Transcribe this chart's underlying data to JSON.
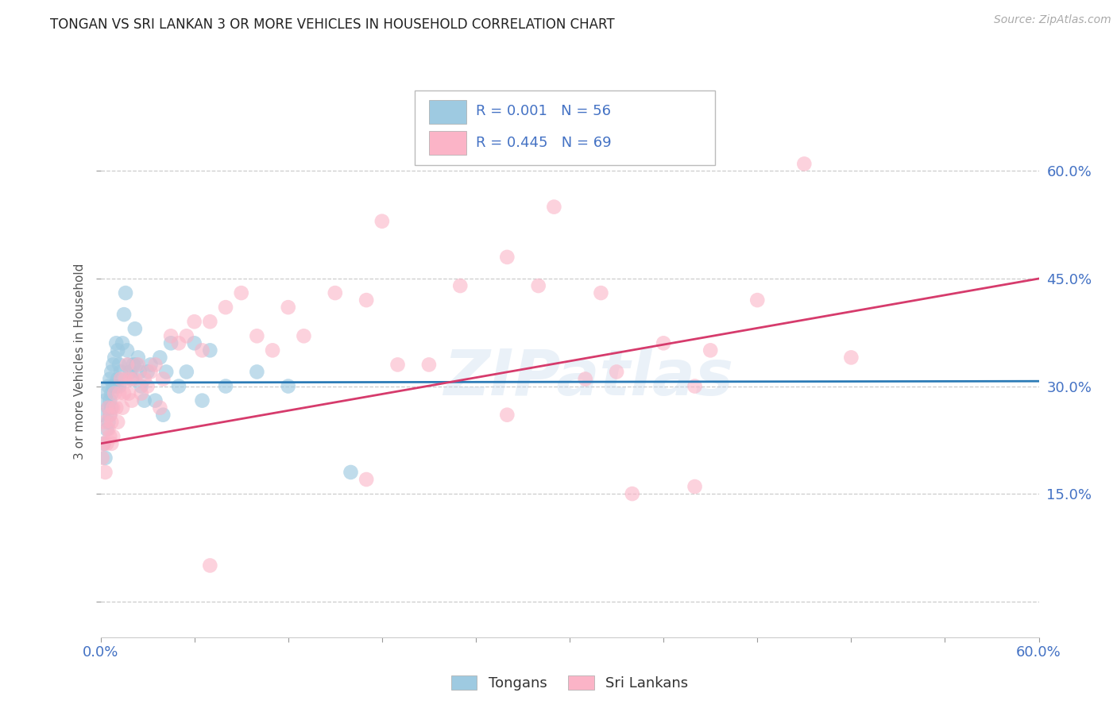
{
  "title": "TONGAN VS SRI LANKAN 3 OR MORE VEHICLES IN HOUSEHOLD CORRELATION CHART",
  "source": "Source: ZipAtlas.com",
  "ylabel": "3 or more Vehicles in Household",
  "xlim": [
    0.0,
    0.6
  ],
  "ylim": [
    -0.05,
    0.72
  ],
  "yticks": [
    0.0,
    0.15,
    0.3,
    0.45,
    0.6
  ],
  "ytick_labels": [
    "",
    "15.0%",
    "30.0%",
    "45.0%",
    "60.0%"
  ],
  "xticks": [
    0.0,
    0.06,
    0.12,
    0.18,
    0.24,
    0.3,
    0.36,
    0.42,
    0.48,
    0.54,
    0.6
  ],
  "xtick_labels": [
    "0.0%",
    "",
    "",
    "",
    "",
    "",
    "",
    "",
    "",
    "",
    "60.0%"
  ],
  "legend_blue_r": "R = 0.001",
  "legend_blue_n": "N = 56",
  "legend_pink_r": "R = 0.445",
  "legend_pink_n": "N = 69",
  "legend_label_blue": "Tongans",
  "legend_label_pink": "Sri Lankans",
  "blue_color": "#9ecae1",
  "pink_color": "#fbb4c7",
  "blue_line_color": "#2c7bb6",
  "pink_line_color": "#d63b6c",
  "title_color": "#222222",
  "axis_label_color": "#555555",
  "tick_label_color": "#4472C4",
  "watermark": "ZIPatlas",
  "background_color": "#ffffff",
  "grid_color": "#cccccc",
  "tongans_x": [
    0.001,
    0.002,
    0.003,
    0.003,
    0.004,
    0.004,
    0.005,
    0.005,
    0.005,
    0.006,
    0.006,
    0.006,
    0.007,
    0.007,
    0.007,
    0.008,
    0.008,
    0.009,
    0.009,
    0.01,
    0.01,
    0.011,
    0.011,
    0.012,
    0.012,
    0.013,
    0.014,
    0.015,
    0.016,
    0.017,
    0.018,
    0.019,
    0.02,
    0.021,
    0.022,
    0.023,
    0.024,
    0.025,
    0.026,
    0.028,
    0.03,
    0.032,
    0.035,
    0.038,
    0.04,
    0.042,
    0.045,
    0.05,
    0.055,
    0.06,
    0.065,
    0.07,
    0.08,
    0.1,
    0.12,
    0.16
  ],
  "tongans_y": [
    0.26,
    0.22,
    0.28,
    0.2,
    0.29,
    0.24,
    0.3,
    0.27,
    0.25,
    0.31,
    0.28,
    0.26,
    0.32,
    0.29,
    0.27,
    0.33,
    0.3,
    0.34,
    0.3,
    0.36,
    0.3,
    0.35,
    0.31,
    0.33,
    0.3,
    0.32,
    0.36,
    0.4,
    0.43,
    0.35,
    0.33,
    0.32,
    0.31,
    0.33,
    0.38,
    0.33,
    0.34,
    0.32,
    0.3,
    0.28,
    0.32,
    0.33,
    0.28,
    0.34,
    0.26,
    0.32,
    0.36,
    0.3,
    0.32,
    0.36,
    0.28,
    0.35,
    0.3,
    0.32,
    0.3,
    0.18
  ],
  "srilankans_x": [
    0.001,
    0.002,
    0.003,
    0.003,
    0.004,
    0.005,
    0.005,
    0.006,
    0.006,
    0.007,
    0.007,
    0.008,
    0.008,
    0.009,
    0.01,
    0.011,
    0.012,
    0.013,
    0.014,
    0.015,
    0.016,
    0.017,
    0.018,
    0.019,
    0.02,
    0.022,
    0.024,
    0.026,
    0.028,
    0.03,
    0.032,
    0.035,
    0.038,
    0.04,
    0.045,
    0.05,
    0.055,
    0.06,
    0.065,
    0.07,
    0.08,
    0.09,
    0.1,
    0.11,
    0.12,
    0.13,
    0.15,
    0.17,
    0.19,
    0.21,
    0.23,
    0.26,
    0.28,
    0.31,
    0.33,
    0.36,
    0.39,
    0.42,
    0.45,
    0.48,
    0.29,
    0.34,
    0.38,
    0.18,
    0.07,
    0.32,
    0.26,
    0.17,
    0.38
  ],
  "srilankans_y": [
    0.2,
    0.22,
    0.18,
    0.25,
    0.22,
    0.24,
    0.27,
    0.23,
    0.26,
    0.22,
    0.25,
    0.27,
    0.23,
    0.29,
    0.27,
    0.25,
    0.29,
    0.31,
    0.27,
    0.29,
    0.31,
    0.33,
    0.29,
    0.31,
    0.28,
    0.31,
    0.33,
    0.29,
    0.31,
    0.3,
    0.32,
    0.33,
    0.27,
    0.31,
    0.37,
    0.36,
    0.37,
    0.39,
    0.35,
    0.39,
    0.41,
    0.43,
    0.37,
    0.35,
    0.41,
    0.37,
    0.43,
    0.42,
    0.33,
    0.33,
    0.44,
    0.48,
    0.44,
    0.31,
    0.32,
    0.36,
    0.35,
    0.42,
    0.61,
    0.34,
    0.55,
    0.15,
    0.16,
    0.53,
    0.05,
    0.43,
    0.26,
    0.17,
    0.3
  ],
  "blue_trend_x": [
    0.0,
    0.6
  ],
  "blue_trend_y": [
    0.305,
    0.307
  ],
  "pink_trend_x": [
    0.0,
    0.6
  ],
  "pink_trend_y": [
    0.22,
    0.45
  ]
}
